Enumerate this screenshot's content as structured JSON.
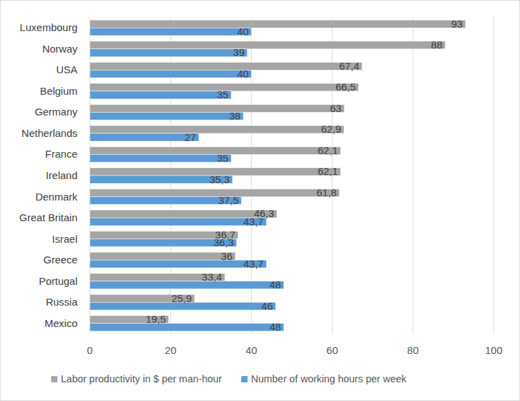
{
  "chart_data": {
    "type": "bar",
    "orientation": "horizontal",
    "categories": [
      "Luxembourg",
      "Norway",
      "USA",
      "Belgium",
      "Germany",
      "Netherlands",
      "France",
      "Ireland",
      "Denmark",
      "Great Britain",
      "Israel",
      "Greece",
      "Portugal",
      "Russia",
      "Mexico"
    ],
    "series": [
      {
        "name": "Labor productivity in $ per man-hour",
        "color": "#a5a5a5",
        "values": [
          93,
          88,
          67.4,
          66.5,
          63,
          62.9,
          62.1,
          62.1,
          61.8,
          46.3,
          36.7,
          36,
          33.4,
          25.9,
          19.5
        ],
        "value_labels": [
          "93",
          "88",
          "67,4",
          "66,5",
          "63",
          "62,9",
          "62,1",
          "62,1",
          "61,8",
          "46,3",
          "36,7",
          "36",
          "33,4",
          "25,9",
          "19,5"
        ]
      },
      {
        "name": "Number of working hours per week",
        "color": "#5b9bd5",
        "values": [
          40,
          39,
          40,
          35,
          38,
          27,
          35,
          35.3,
          37.5,
          43.7,
          36.3,
          43.7,
          48,
          46,
          48
        ],
        "value_labels": [
          "40",
          "39",
          "40",
          "35",
          "38",
          "27",
          "35",
          "35,3",
          "37,5",
          "43,7",
          "36,3",
          "43,7",
          "48",
          "46",
          "48"
        ]
      }
    ],
    "xlim": [
      0,
      100
    ],
    "xticks": [
      0,
      20,
      40,
      60,
      80,
      100
    ],
    "grid": true,
    "legend": "bottom",
    "data_labels": true
  }
}
